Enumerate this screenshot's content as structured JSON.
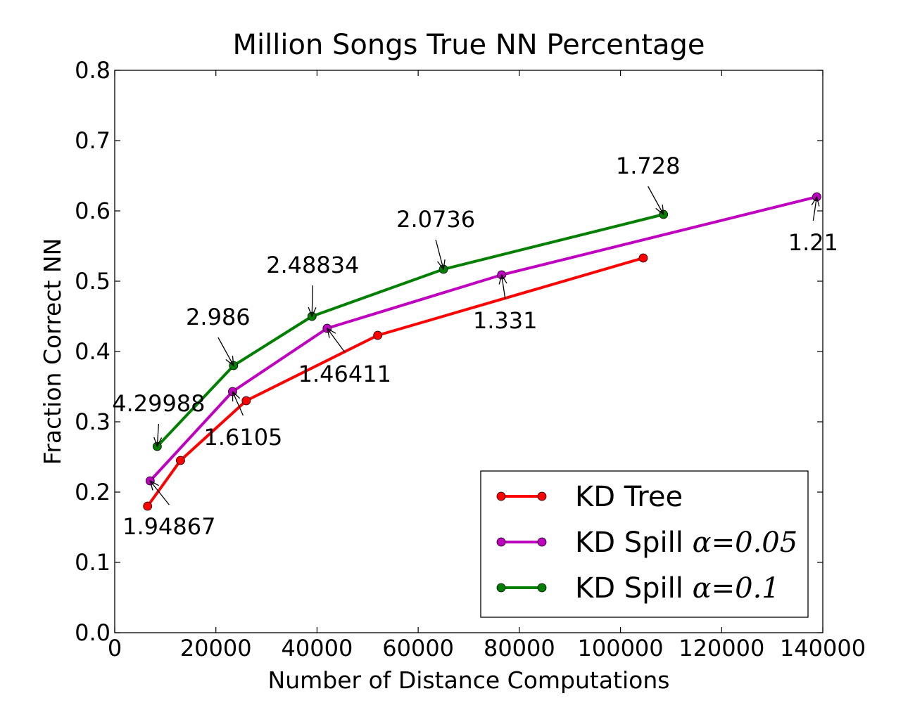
{
  "chart_data": {
    "type": "line",
    "title": "Million Songs True NN Percentage",
    "xlabel": "Number of Distance Computations",
    "ylabel": "Fraction Correct NN",
    "xlim": [
      0,
      140000
    ],
    "ylim": [
      0.0,
      0.8
    ],
    "x_ticks": [
      "0",
      "20000",
      "40000",
      "60000",
      "80000",
      "100000",
      "120000",
      "140000"
    ],
    "y_ticks": [
      "0.0",
      "0.1",
      "0.2",
      "0.3",
      "0.4",
      "0.5",
      "0.6",
      "0.7",
      "0.8"
    ],
    "grid": false,
    "legend_position": "lower-right",
    "series": [
      {
        "name": "KD Tree",
        "color": "#ff0000",
        "points": [
          [
            6500,
            0.18
          ],
          [
            13000,
            0.245
          ],
          [
            26000,
            0.33
          ],
          [
            52000,
            0.423
          ],
          [
            104500,
            0.533
          ]
        ]
      },
      {
        "name": "KD Spill α=0.05",
        "legend_prefix": "KD Spill ",
        "legend_math": "α=0.05",
        "color": "#bf00bf",
        "points": [
          [
            7000,
            0.216
          ],
          [
            23300,
            0.343
          ],
          [
            42000,
            0.433
          ],
          [
            76500,
            0.509
          ],
          [
            138800,
            0.62
          ]
        ]
      },
      {
        "name": "KD Spill α=0.1",
        "legend_prefix": "KD Spill ",
        "legend_math": "α=0.1",
        "color": "#007f00",
        "points": [
          [
            8400,
            0.265
          ],
          [
            23500,
            0.38
          ],
          [
            39000,
            0.45
          ],
          [
            65000,
            0.517
          ],
          [
            108500,
            0.595
          ]
        ]
      }
    ],
    "annotations": [
      {
        "text": "4.29988",
        "series": 2,
        "point": 0,
        "dx": 2,
        "dy": -50
      },
      {
        "text": "2.986",
        "series": 2,
        "point": 1,
        "dx": -22,
        "dy": -58
      },
      {
        "text": "2.48834",
        "series": 2,
        "point": 2,
        "dx": 1,
        "dy": -62
      },
      {
        "text": "2.0736",
        "series": 2,
        "point": 3,
        "dx": -11,
        "dy": -60
      },
      {
        "text": "1.728",
        "series": 2,
        "point": 4,
        "dx": -22,
        "dy": -58
      },
      {
        "text": "1.94867",
        "series": 1,
        "point": 0,
        "dx": 27,
        "dy": 76
      },
      {
        "text": "1.6105",
        "series": 1,
        "point": 1,
        "dx": 15,
        "dy": 76
      },
      {
        "text": "1.46411",
        "series": 1,
        "point": 2,
        "dx": 25,
        "dy": 76
      },
      {
        "text": "1.331",
        "series": 1,
        "point": 3,
        "dx": 5,
        "dy": 76
      },
      {
        "text": "1.21",
        "series": 1,
        "point": 4,
        "dx": -5,
        "dy": 76
      }
    ]
  }
}
